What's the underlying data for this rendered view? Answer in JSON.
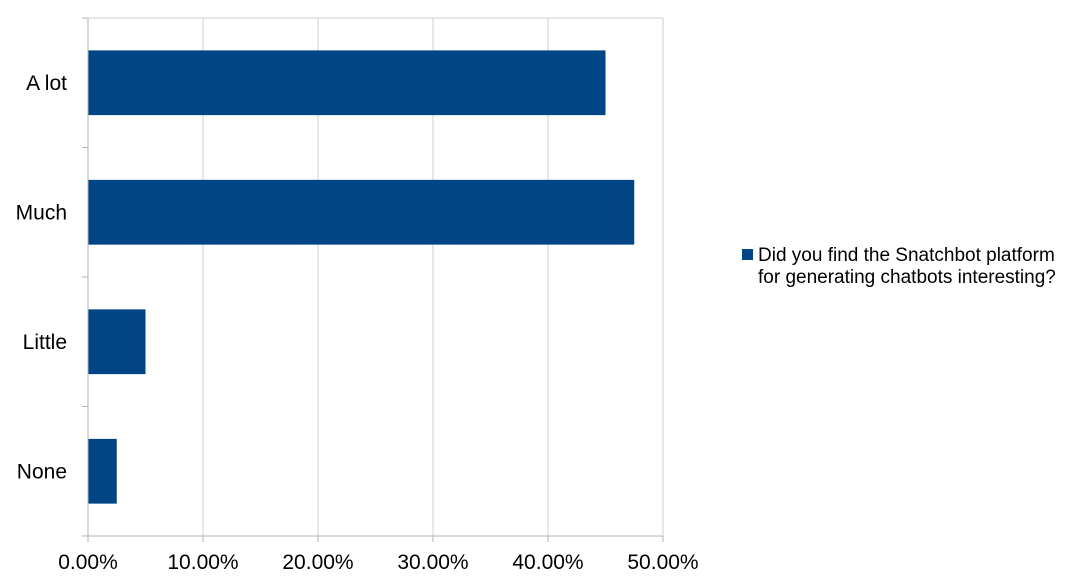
{
  "chart_data": {
    "type": "bar",
    "orientation": "horizontal",
    "categories": [
      "A lot",
      "Much",
      "Little",
      "None"
    ],
    "series": [
      {
        "name": "Did you find the Snatchbot platform for generating chatbots interesting?",
        "values": [
          45.0,
          47.5,
          5.0,
          2.5
        ],
        "color": "#004586"
      }
    ],
    "xlim": [
      0,
      50
    ],
    "x_ticks": [
      "0.00%",
      "10.00%",
      "20.00%",
      "30.00%",
      "40.00%",
      "50.00%"
    ],
    "grid": true,
    "legend_position": "right"
  }
}
